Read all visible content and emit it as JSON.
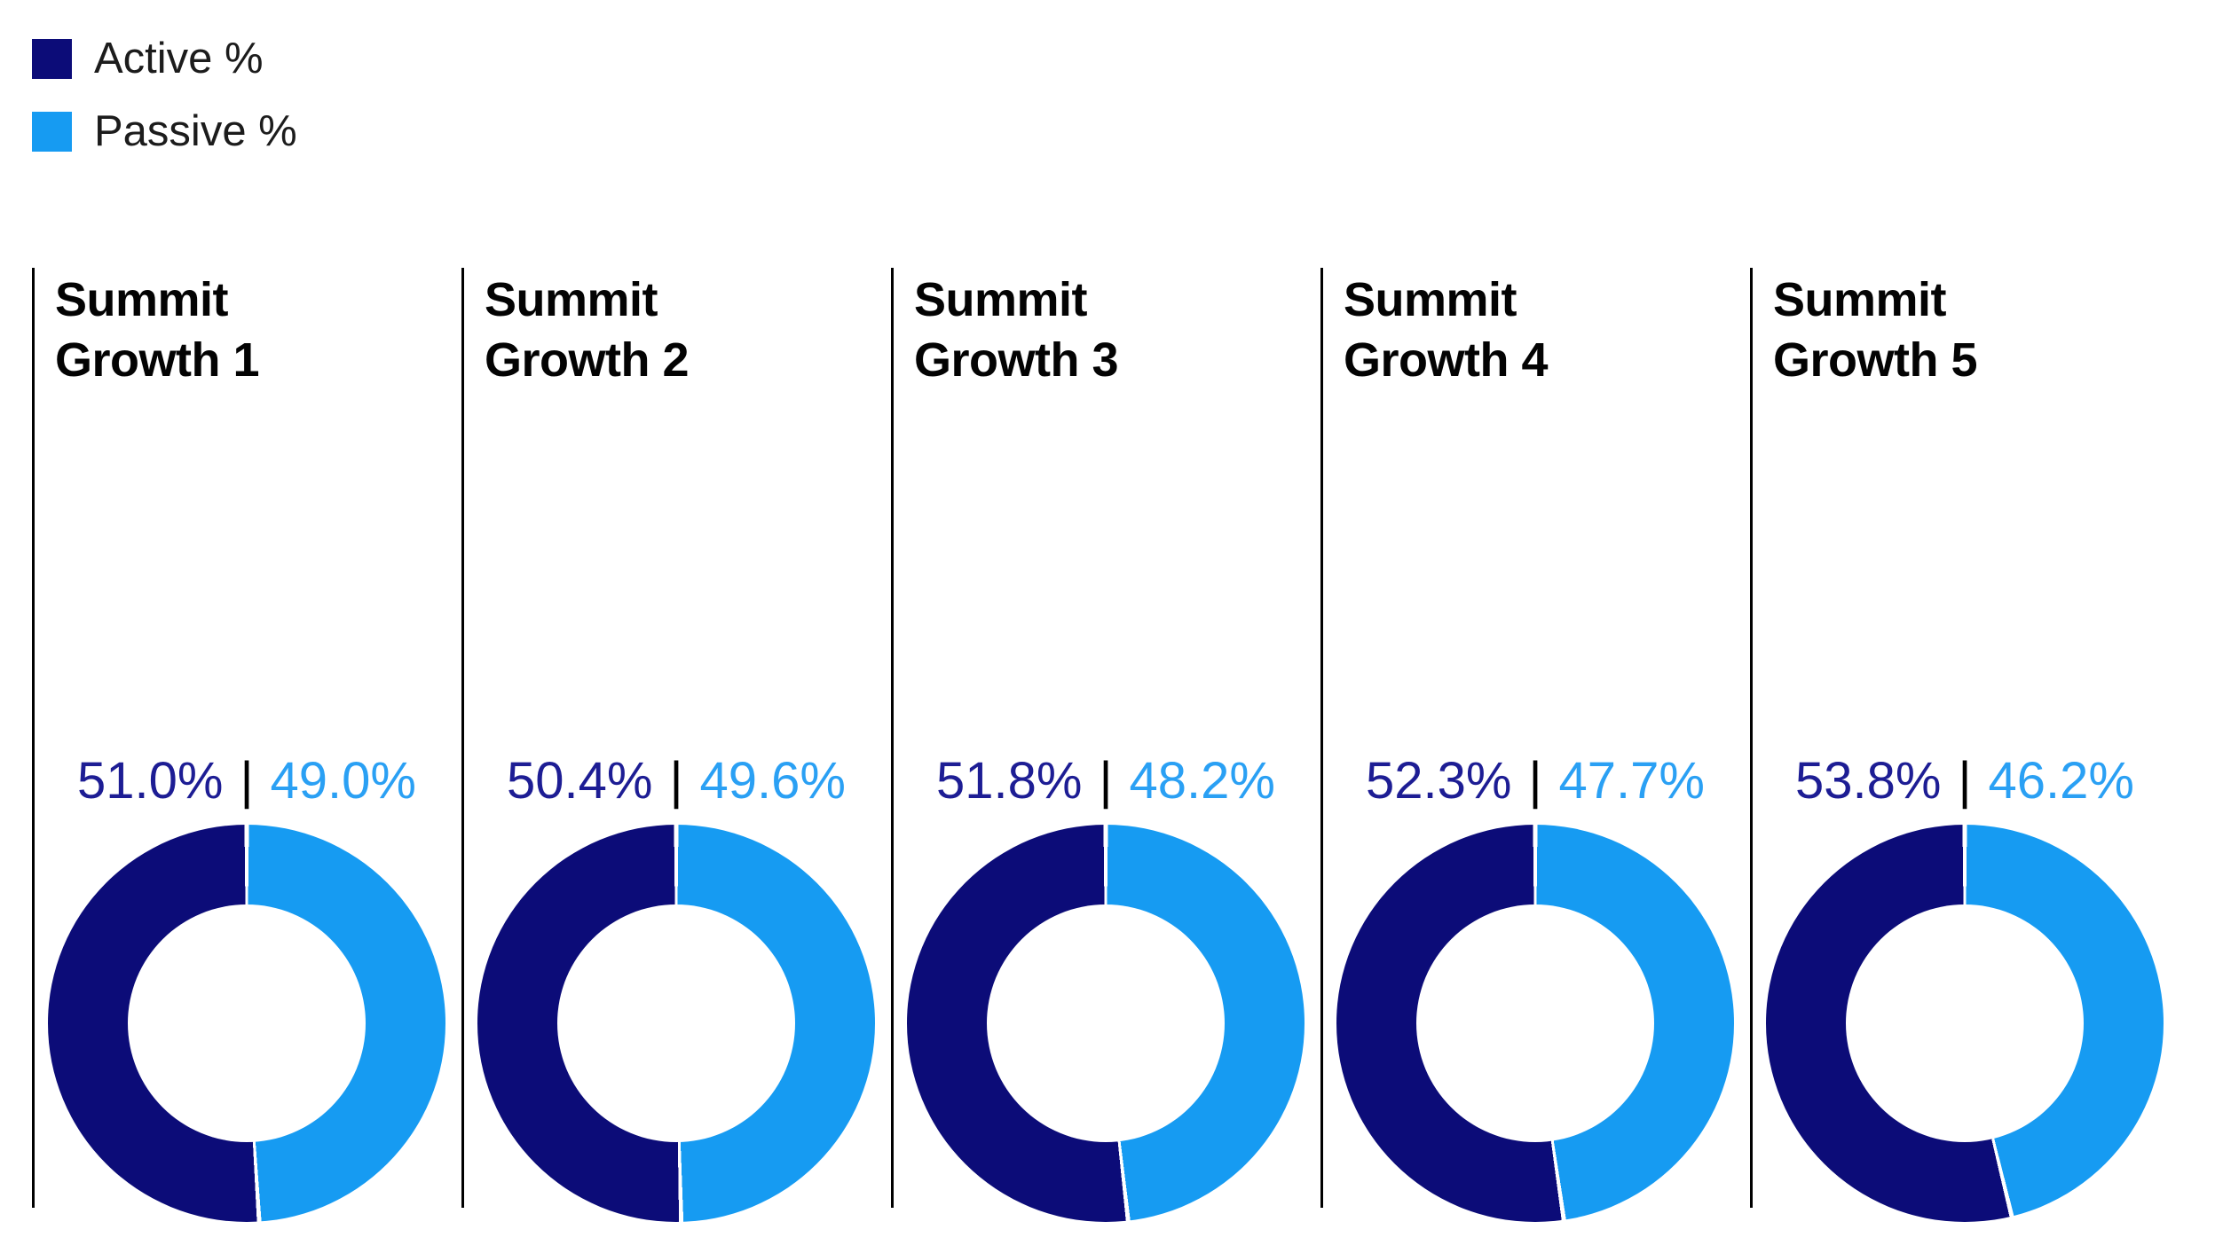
{
  "colors": {
    "active": "#0c0c78",
    "passive": "#169bf2",
    "active_text": "#1d1d94",
    "passive_text": "#2aa0f4",
    "divider": "#000000",
    "slice_gap": "#ffffff"
  },
  "legend": {
    "items": [
      {
        "id": "active",
        "label": "Active %"
      },
      {
        "id": "passive",
        "label": "Passive %"
      }
    ]
  },
  "separator_char": "|",
  "panels": [
    {
      "title": "Summit Growth 1",
      "active": 51.0,
      "passive": 49.0,
      "active_label": "51.0%",
      "passive_label": "49.0%"
    },
    {
      "title": "Summit Growth 2",
      "active": 50.4,
      "passive": 49.6,
      "active_label": "50.4%",
      "passive_label": "49.6%"
    },
    {
      "title": "Summit Growth 3",
      "active": 51.8,
      "passive": 48.2,
      "active_label": "51.8%",
      "passive_label": "48.2%"
    },
    {
      "title": "Summit Growth 4",
      "active": 52.3,
      "passive": 47.7,
      "active_label": "52.3%",
      "passive_label": "47.7%"
    },
    {
      "title": "Summit Growth 5",
      "active": 53.8,
      "passive": 46.2,
      "active_label": "53.8%",
      "passive_label": "46.2%"
    }
  ],
  "chart_data": [
    {
      "type": "pie",
      "style": "donut",
      "title": "Summit Growth 1",
      "categories": [
        "Active %",
        "Passive %"
      ],
      "values": [
        51.0,
        49.0
      ],
      "unit": "%",
      "legend_position": "top-left",
      "start_angle_deg": 0,
      "passive_drawn_clockwise_from_top": true,
      "hole_ratio": 0.6
    },
    {
      "type": "pie",
      "style": "donut",
      "title": "Summit Growth 2",
      "categories": [
        "Active %",
        "Passive %"
      ],
      "values": [
        50.4,
        49.6
      ],
      "unit": "%",
      "legend_position": "top-left",
      "start_angle_deg": 0,
      "passive_drawn_clockwise_from_top": true,
      "hole_ratio": 0.6
    },
    {
      "type": "pie",
      "style": "donut",
      "title": "Summit Growth 3",
      "categories": [
        "Active %",
        "Passive %"
      ],
      "values": [
        51.8,
        48.2
      ],
      "unit": "%",
      "legend_position": "top-left",
      "start_angle_deg": 0,
      "passive_drawn_clockwise_from_top": true,
      "hole_ratio": 0.6
    },
    {
      "type": "pie",
      "style": "donut",
      "title": "Summit Growth 4",
      "categories": [
        "Active %",
        "Passive %"
      ],
      "values": [
        52.3,
        47.7
      ],
      "unit": "%",
      "legend_position": "top-left",
      "start_angle_deg": 0,
      "passive_drawn_clockwise_from_top": true,
      "hole_ratio": 0.6
    },
    {
      "type": "pie",
      "style": "donut",
      "title": "Summit Growth 5",
      "categories": [
        "Active %",
        "Passive %"
      ],
      "values": [
        53.8,
        46.2
      ],
      "unit": "%",
      "legend_position": "top-left",
      "start_angle_deg": 0,
      "passive_drawn_clockwise_from_top": true,
      "hole_ratio": 0.6
    }
  ]
}
